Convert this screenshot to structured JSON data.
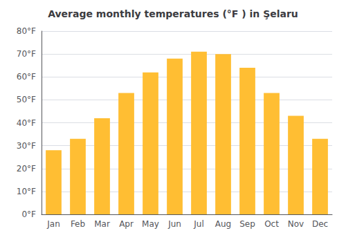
{
  "chart_data": {
    "type": "bar",
    "title": "Average monthly temperatures (°F ) in Şelaru",
    "categories": [
      "Jan",
      "Feb",
      "Mar",
      "Apr",
      "May",
      "Jun",
      "Jul",
      "Aug",
      "Sep",
      "Oct",
      "Nov",
      "Dec"
    ],
    "values": [
      28,
      33,
      42,
      53,
      62,
      68,
      71,
      70,
      64,
      53,
      43,
      33
    ],
    "color": "#FFBE33",
    "ylim": [
      0,
      80
    ],
    "yticks": [
      {
        "value": 0,
        "label": "0°F"
      },
      {
        "value": 10,
        "label": "10°F"
      },
      {
        "value": 20,
        "label": "20°F"
      },
      {
        "value": 30,
        "label": "30°F"
      },
      {
        "value": 40,
        "label": "40°F"
      },
      {
        "value": 50,
        "label": "50°F"
      },
      {
        "value": 60,
        "label": "60°F"
      },
      {
        "value": 70,
        "label": "70°F"
      },
      {
        "value": 80,
        "label": "80°F"
      }
    ],
    "grid": true
  }
}
